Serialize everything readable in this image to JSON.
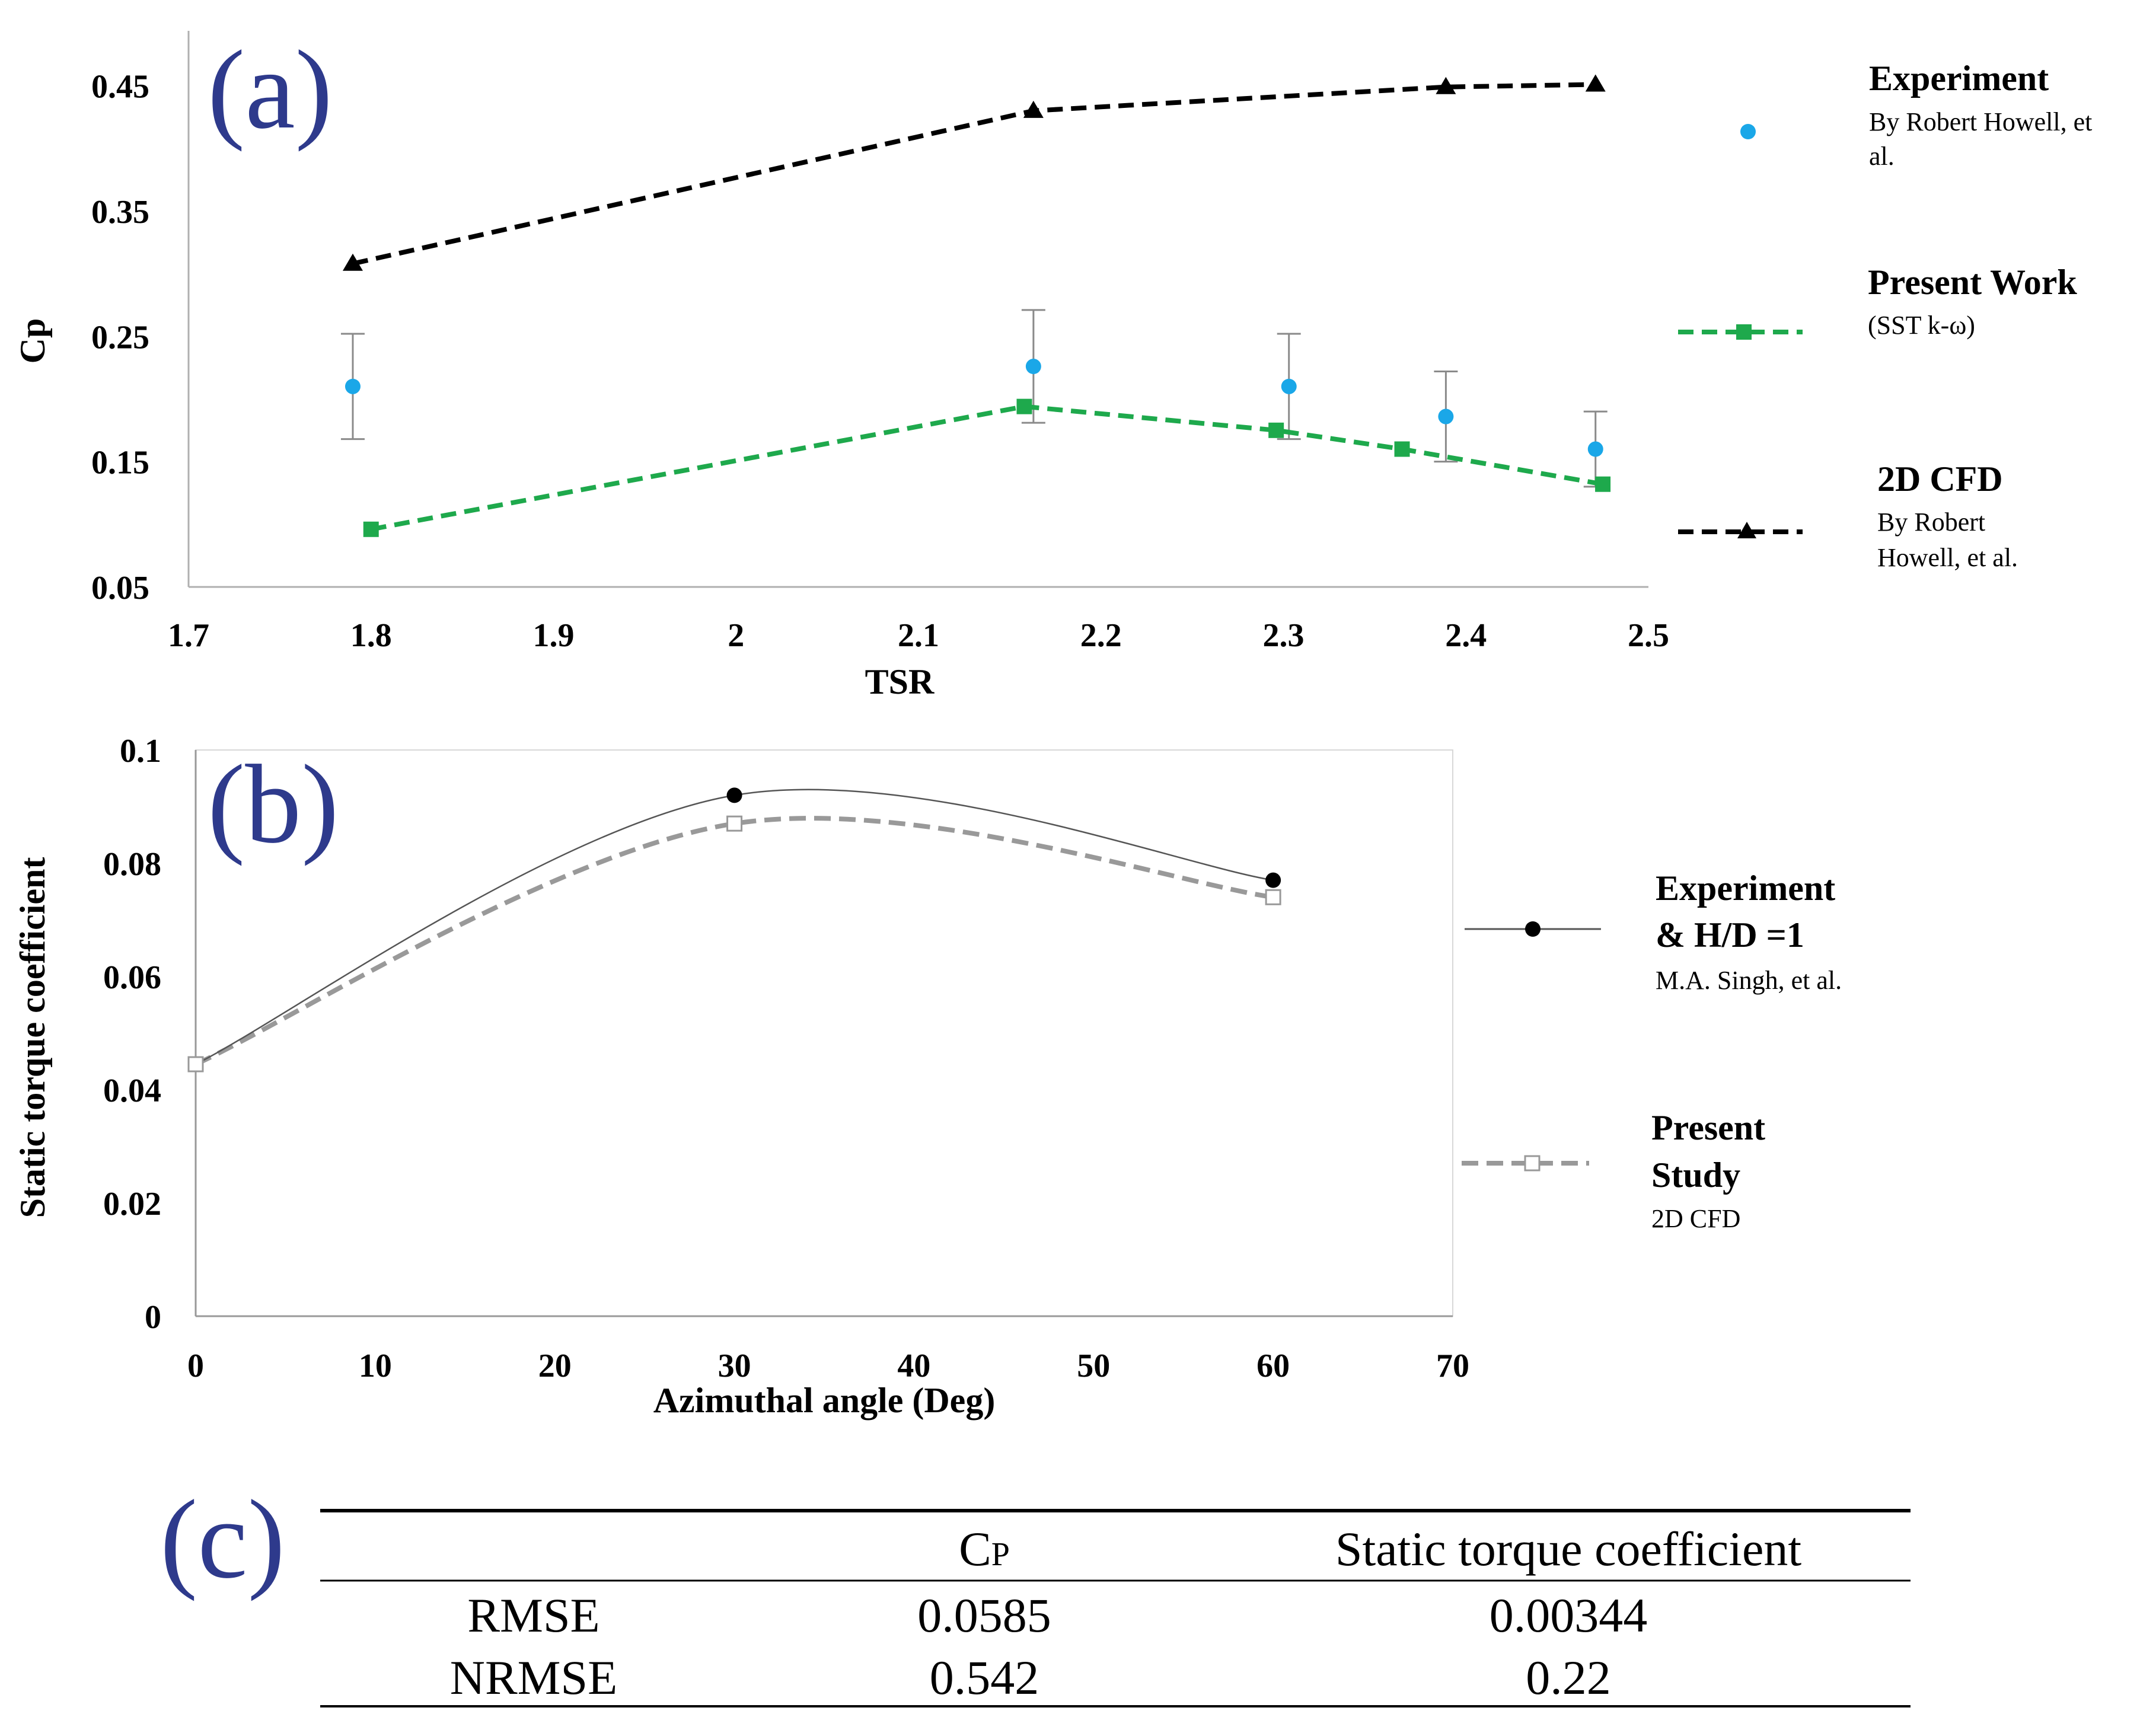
{
  "chart_data": [
    {
      "panel": "(a)",
      "type": "line",
      "xlabel": "TSR",
      "ylabel": "Cp",
      "xlim": [
        1.7,
        2.5
      ],
      "ylim": [
        0.05,
        0.5
      ],
      "xticks": [
        "1.7",
        "1.8",
        "1.9",
        "2",
        "2.1",
        "2.2",
        "2.3",
        "2.4",
        "2.5"
      ],
      "yticks": [
        "0.05",
        "0.15",
        "0.25",
        "0.35",
        "0.45"
      ],
      "series": [
        {
          "name": "Experiment",
          "subtitle_lines": [
            "By Robert Howell, et",
            "al."
          ],
          "style": "points",
          "color": "#1aa7e8",
          "x": [
            1.79,
            2.163,
            2.303,
            2.389,
            2.471
          ],
          "y": [
            0.21,
            0.226,
            0.21,
            0.186,
            0.16
          ],
          "error": [
            0.042,
            0.045,
            0.042,
            0.036,
            0.03
          ]
        },
        {
          "name": "Present Work",
          "subtitle_lines": [
            "(SST k-ω)"
          ],
          "style": "dashed-square",
          "color": "#1ea94c",
          "x": [
            1.8,
            2.158,
            2.296,
            2.365,
            2.475
          ],
          "y": [
            0.096,
            0.194,
            0.175,
            0.16,
            0.132
          ]
        },
        {
          "name": "2D CFD",
          "subtitle_lines": [
            "By Robert",
            "Howell, et al."
          ],
          "style": "dashed-triangle",
          "color": "#000000",
          "x": [
            1.79,
            2.163,
            2.389,
            2.471
          ],
          "y": [
            0.308,
            0.43,
            0.449,
            0.451
          ]
        }
      ]
    },
    {
      "panel": "(b)",
      "type": "line",
      "xlabel": "Azimuthal angle (Deg)",
      "ylabel": "Static torque coefficient",
      "xlim": [
        0,
        70
      ],
      "ylim": [
        0,
        0.1
      ],
      "xticks": [
        "0",
        "10",
        "20",
        "30",
        "40",
        "50",
        "60",
        "70"
      ],
      "yticks": [
        "0",
        "0.02",
        "0.04",
        "0.06",
        "0.08",
        "0.1"
      ],
      "series": [
        {
          "name_lines": [
            "Experiment",
            "& H/D =1"
          ],
          "subtitle_lines": [
            "M.A. Singh, et al."
          ],
          "style": "thin-line-circle",
          "color": "#000000",
          "x": [
            0,
            30,
            60
          ],
          "y": [
            0.0445,
            0.092,
            0.077
          ]
        },
        {
          "name_lines": [
            "Present",
            "Study"
          ],
          "subtitle_lines": [
            "2D CFD"
          ],
          "style": "dashed-open-square",
          "color": "#999999",
          "x": [
            0,
            30,
            60
          ],
          "y": [
            0.0445,
            0.087,
            0.074
          ]
        }
      ]
    },
    {
      "panel": "(c)",
      "type": "table",
      "columns": [
        "",
        "CP",
        "Static torque coefficient"
      ],
      "rows": [
        [
          "RMSE",
          "0.0585",
          "0.00344"
        ],
        [
          "NRMSE",
          "0.542",
          "0.22"
        ]
      ]
    }
  ]
}
